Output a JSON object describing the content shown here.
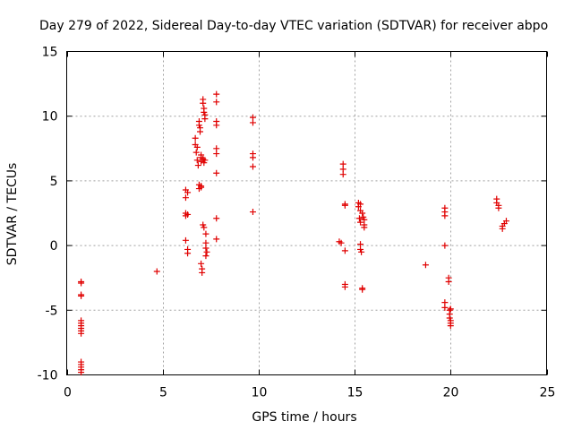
{
  "chart_data": {
    "type": "scatter",
    "title": "Day 279 of 2022, Sidereal Day-to-day VTEC variation (SDTVAR) for receiver abpo",
    "xlabel": "GPS time / hours",
    "ylabel": "SDTVAR / TECUs",
    "xlim": [
      0,
      25
    ],
    "ylim": [
      -10,
      15
    ],
    "xticks": [
      0,
      5,
      10,
      15,
      20,
      25
    ],
    "yticks": [
      -10,
      -5,
      0,
      5,
      10,
      15
    ],
    "xtick_labels": [
      "0",
      "5",
      "10",
      "15",
      "20",
      "25"
    ],
    "ytick_labels": [
      "-10",
      "-5",
      "0",
      "5",
      "10",
      "15"
    ],
    "grid": true,
    "marker": "+",
    "color": "#e00000",
    "series": [
      {
        "name": "SDTVAR",
        "x": [
          0.75,
          0.75,
          0.75,
          0.75,
          0.75,
          0.75,
          0.75,
          0.75,
          0.75,
          0.75,
          0.75,
          0.75,
          0.75,
          0.75,
          0.75,
          4.7,
          6.2,
          6.2,
          6.2,
          6.2,
          6.2,
          6.3,
          6.3,
          6.3,
          6.3,
          6.7,
          6.7,
          6.75,
          6.8,
          6.8,
          6.85,
          6.9,
          6.9,
          6.9,
          6.9,
          6.95,
          6.95,
          7.0,
          7.0,
          7.0,
          7.0,
          7.0,
          7.0,
          7.05,
          7.05,
          7.1,
          7.1,
          7.1,
          7.1,
          7.15,
          7.15,
          7.15,
          7.15,
          7.2,
          7.2,
          7.2,
          7.25,
          7.25,
          7.25,
          7.25,
          7.3,
          7.8,
          7.8,
          7.8,
          7.8,
          7.8,
          7.8,
          7.8,
          7.8,
          7.8,
          9.7,
          9.7,
          9.7,
          9.7,
          9.7,
          9.7,
          14.2,
          14.3,
          14.4,
          14.4,
          14.4,
          14.5,
          14.5,
          14.5,
          14.5,
          14.5,
          15.2,
          15.2,
          15.25,
          15.3,
          15.3,
          15.3,
          15.3,
          15.3,
          15.35,
          15.4,
          15.4,
          15.4,
          15.45,
          15.5,
          15.5,
          15.5,
          18.7,
          19.7,
          19.7,
          19.7,
          19.7,
          19.7,
          19.7,
          19.9,
          19.9,
          19.95,
          19.95,
          19.95,
          20.0,
          20.0,
          20.0,
          20.0,
          22.4,
          22.4,
          22.5,
          22.5,
          22.7,
          22.7,
          22.8,
          22.9
        ],
        "y": [
          -2.8,
          -3.9,
          -5.8,
          -6.0,
          -6.2,
          -6.4,
          -6.8,
          -9.0,
          -9.2,
          -9.4,
          -9.6,
          -9.8,
          -6.6,
          -3.8,
          -2.9,
          -2.0,
          4.3,
          3.7,
          2.5,
          2.3,
          0.4,
          -0.3,
          -0.6,
          4.1,
          2.4,
          8.3,
          7.8,
          7.2,
          7.6,
          6.6,
          6.2,
          9.6,
          9.3,
          4.7,
          4.4,
          9.1,
          8.8,
          7.0,
          6.8,
          6.5,
          4.5,
          4.6,
          -1.4,
          -1.8,
          -2.1,
          11.3,
          11.0,
          6.7,
          1.6,
          10.6,
          10.3,
          6.4,
          1.4,
          10.1,
          9.8,
          6.6,
          0.9,
          0.2,
          -0.2,
          -0.8,
          -0.5,
          11.7,
          11.1,
          9.6,
          9.3,
          7.5,
          7.1,
          5.6,
          2.1,
          0.5,
          9.9,
          9.5,
          7.1,
          6.8,
          6.1,
          2.6,
          0.3,
          0.2,
          6.3,
          5.9,
          5.5,
          3.2,
          3.1,
          -0.4,
          -3.0,
          -3.2,
          3.3,
          3.0,
          2.1,
          3.2,
          2.7,
          1.8,
          0.1,
          -0.3,
          -0.5,
          -3.3,
          -3.4,
          2.5,
          2.2,
          2.0,
          1.6,
          1.4,
          -1.5,
          2.9,
          2.6,
          2.3,
          0.0,
          -4.4,
          -4.8,
          -2.5,
          -2.8,
          -5.0,
          -5.3,
          -5.6,
          -5.8,
          -6.0,
          -6.2,
          -4.9,
          3.6,
          3.3,
          3.1,
          2.9,
          1.5,
          1.3,
          1.7,
          1.9
        ]
      }
    ]
  }
}
